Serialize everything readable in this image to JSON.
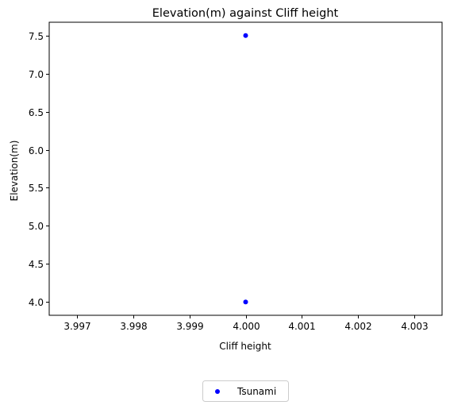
{
  "chart_data": {
    "type": "scatter",
    "title": "Elevation(m) against Cliff height",
    "xlabel": "Cliff height",
    "ylabel": "Elevation(m)",
    "xlim": [
      3.9965,
      4.0035
    ],
    "ylim": [
      3.825,
      7.675
    ],
    "x_ticks": [
      3.997,
      3.998,
      3.999,
      4.0,
      4.001,
      4.002,
      4.003
    ],
    "x_tick_labels": [
      "3.997",
      "3.998",
      "3.999",
      "4.000",
      "4.001",
      "4.002",
      "4.003"
    ],
    "y_ticks": [
      4.0,
      4.5,
      5.0,
      5.5,
      6.0,
      6.5,
      7.0,
      7.5
    ],
    "y_tick_labels": [
      "4.0",
      "4.5",
      "5.0",
      "5.5",
      "6.0",
      "6.5",
      "7.0",
      "7.5"
    ],
    "grid": false,
    "legend_position": "bottom-center",
    "series": [
      {
        "name": "Tsunami",
        "color": "#0000ff",
        "points": [
          {
            "x": 4.0,
            "y": 7.5
          },
          {
            "x": 4.0,
            "y": 4.0
          }
        ]
      }
    ]
  }
}
